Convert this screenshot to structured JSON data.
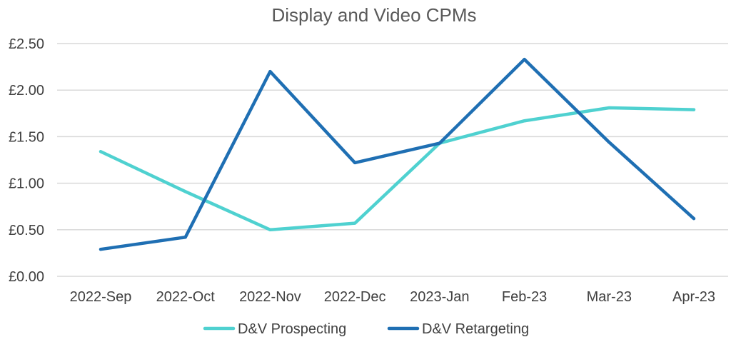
{
  "chart_data": {
    "type": "line",
    "title": "Display and Video CPMs",
    "categories": [
      "2022-Sep",
      "2022-Oct",
      "2022-Nov",
      "2022-Dec",
      "2023-Jan",
      "Feb-23",
      "Mar-23",
      "Apr-23"
    ],
    "series": [
      {
        "name": "D&V Prospecting",
        "color": "#4fd1d0",
        "values": [
          1.34,
          0.91,
          0.5,
          0.57,
          1.43,
          1.67,
          1.81,
          1.79
        ]
      },
      {
        "name": "D&V Retargeting",
        "color": "#1f6fb3",
        "values": [
          0.29,
          0.42,
          2.2,
          1.22,
          1.43,
          2.33,
          1.44,
          0.62
        ]
      }
    ],
    "ylim": [
      0,
      2.5
    ],
    "yticks": [
      "£0.00",
      "£0.50",
      "£1.00",
      "£1.50",
      "£2.00",
      "£2.50"
    ],
    "ytick_values": [
      0,
      0.5,
      1.0,
      1.5,
      2.0,
      2.5
    ],
    "grid": true,
    "legend_position": "bottom",
    "gridline_color": "#d9d9d9"
  }
}
